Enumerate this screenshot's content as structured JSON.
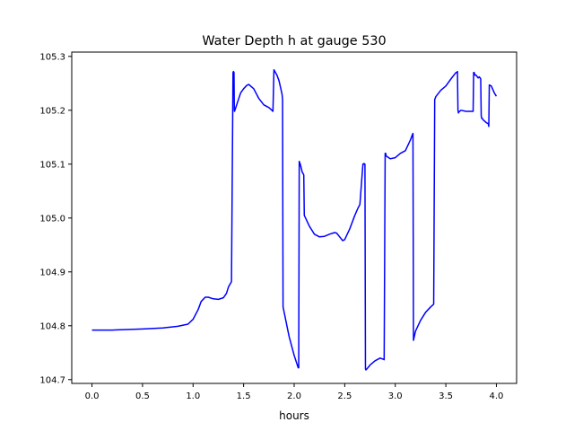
{
  "chart_data": {
    "type": "line",
    "title": "Water Depth h at gauge 530",
    "xlabel": "hours",
    "ylabel": "",
    "xlim": [
      -0.2,
      4.2
    ],
    "ylim": [
      104.693,
      105.308
    ],
    "xticks": [
      0.0,
      0.5,
      1.0,
      1.5,
      2.0,
      2.5,
      3.0,
      3.5,
      4.0
    ],
    "xtick_labels": [
      "0.0",
      "0.5",
      "1.0",
      "1.5",
      "2.0",
      "2.5",
      "3.0",
      "3.5",
      "4.0"
    ],
    "yticks": [
      104.7,
      104.8,
      104.9,
      105.0,
      105.1,
      105.2,
      105.3
    ],
    "ytick_labels": [
      "104.7",
      "104.8",
      "104.9",
      "105.0",
      "105.1",
      "105.2",
      "105.3"
    ],
    "grid": false,
    "legend": "none",
    "series": [
      {
        "color": "#0000ff",
        "x": [
          0.0,
          0.2,
          0.5,
          0.7,
          0.85,
          0.95,
          1.0,
          1.05,
          1.08,
          1.12,
          1.15,
          1.2,
          1.25,
          1.3,
          1.33,
          1.35,
          1.38,
          1.395,
          1.4,
          1.405,
          1.408,
          1.41,
          1.44,
          1.47,
          1.5,
          1.53,
          1.55,
          1.6,
          1.65,
          1.7,
          1.75,
          1.78,
          1.79,
          1.8,
          1.83,
          1.85,
          1.88,
          1.885,
          1.89,
          1.95,
          2.0,
          2.04,
          2.045,
          2.05,
          2.06,
          2.08,
          2.09,
          2.095,
          2.1,
          2.15,
          2.2,
          2.25,
          2.3,
          2.35,
          2.4,
          2.42,
          2.45,
          2.48,
          2.5,
          2.55,
          2.58,
          2.6,
          2.63,
          2.65,
          2.68,
          2.69,
          2.7,
          2.705,
          2.71,
          2.72,
          2.75,
          2.8,
          2.85,
          2.88,
          2.89,
          2.9,
          2.905,
          2.91,
          2.95,
          3.0,
          3.05,
          3.1,
          3.15,
          3.17,
          3.175,
          3.18,
          3.2,
          3.25,
          3.3,
          3.35,
          3.38,
          3.39,
          3.395,
          3.4,
          3.45,
          3.5,
          3.55,
          3.6,
          3.61,
          3.615,
          3.62,
          3.625,
          3.63,
          3.65,
          3.7,
          3.75,
          3.77,
          3.775,
          3.78,
          3.79,
          3.8,
          3.82,
          3.83,
          3.84,
          3.845,
          3.85,
          3.855,
          3.86,
          3.87,
          3.9,
          3.92,
          3.925,
          3.93,
          3.95,
          3.98,
          4.0
        ],
        "y": [
          104.792,
          104.792,
          104.794,
          104.796,
          104.799,
          104.803,
          104.812,
          104.83,
          104.845,
          104.853,
          104.853,
          104.85,
          104.849,
          104.852,
          104.86,
          104.872,
          104.882,
          105.27,
          105.272,
          105.27,
          105.2,
          105.198,
          105.215,
          105.232,
          105.24,
          105.246,
          105.248,
          105.24,
          105.222,
          105.21,
          105.205,
          105.2,
          105.198,
          105.275,
          105.265,
          105.255,
          105.23,
          105.22,
          104.835,
          104.78,
          104.745,
          104.722,
          104.722,
          105.105,
          105.1,
          105.085,
          105.082,
          105.08,
          105.005,
          104.985,
          104.97,
          104.965,
          104.966,
          104.97,
          104.973,
          104.972,
          104.965,
          104.958,
          104.96,
          104.98,
          104.995,
          105.005,
          105.018,
          105.025,
          105.1,
          105.101,
          105.1,
          104.72,
          104.718,
          104.72,
          104.727,
          104.735,
          104.74,
          104.738,
          104.737,
          105.12,
          105.12,
          105.115,
          105.11,
          105.112,
          105.12,
          105.125,
          105.145,
          105.155,
          105.157,
          104.773,
          104.79,
          104.81,
          104.825,
          104.835,
          104.84,
          105.22,
          105.222,
          105.225,
          105.237,
          105.245,
          105.258,
          105.27,
          105.27,
          105.272,
          105.2,
          105.195,
          105.197,
          105.2,
          105.198,
          105.198,
          105.198,
          105.27,
          105.27,
          105.265,
          105.265,
          105.26,
          105.262,
          105.26,
          105.258,
          105.19,
          105.185,
          105.185,
          105.182,
          105.177,
          105.175,
          105.17,
          105.247,
          105.245,
          105.232,
          105.226
        ]
      }
    ]
  }
}
